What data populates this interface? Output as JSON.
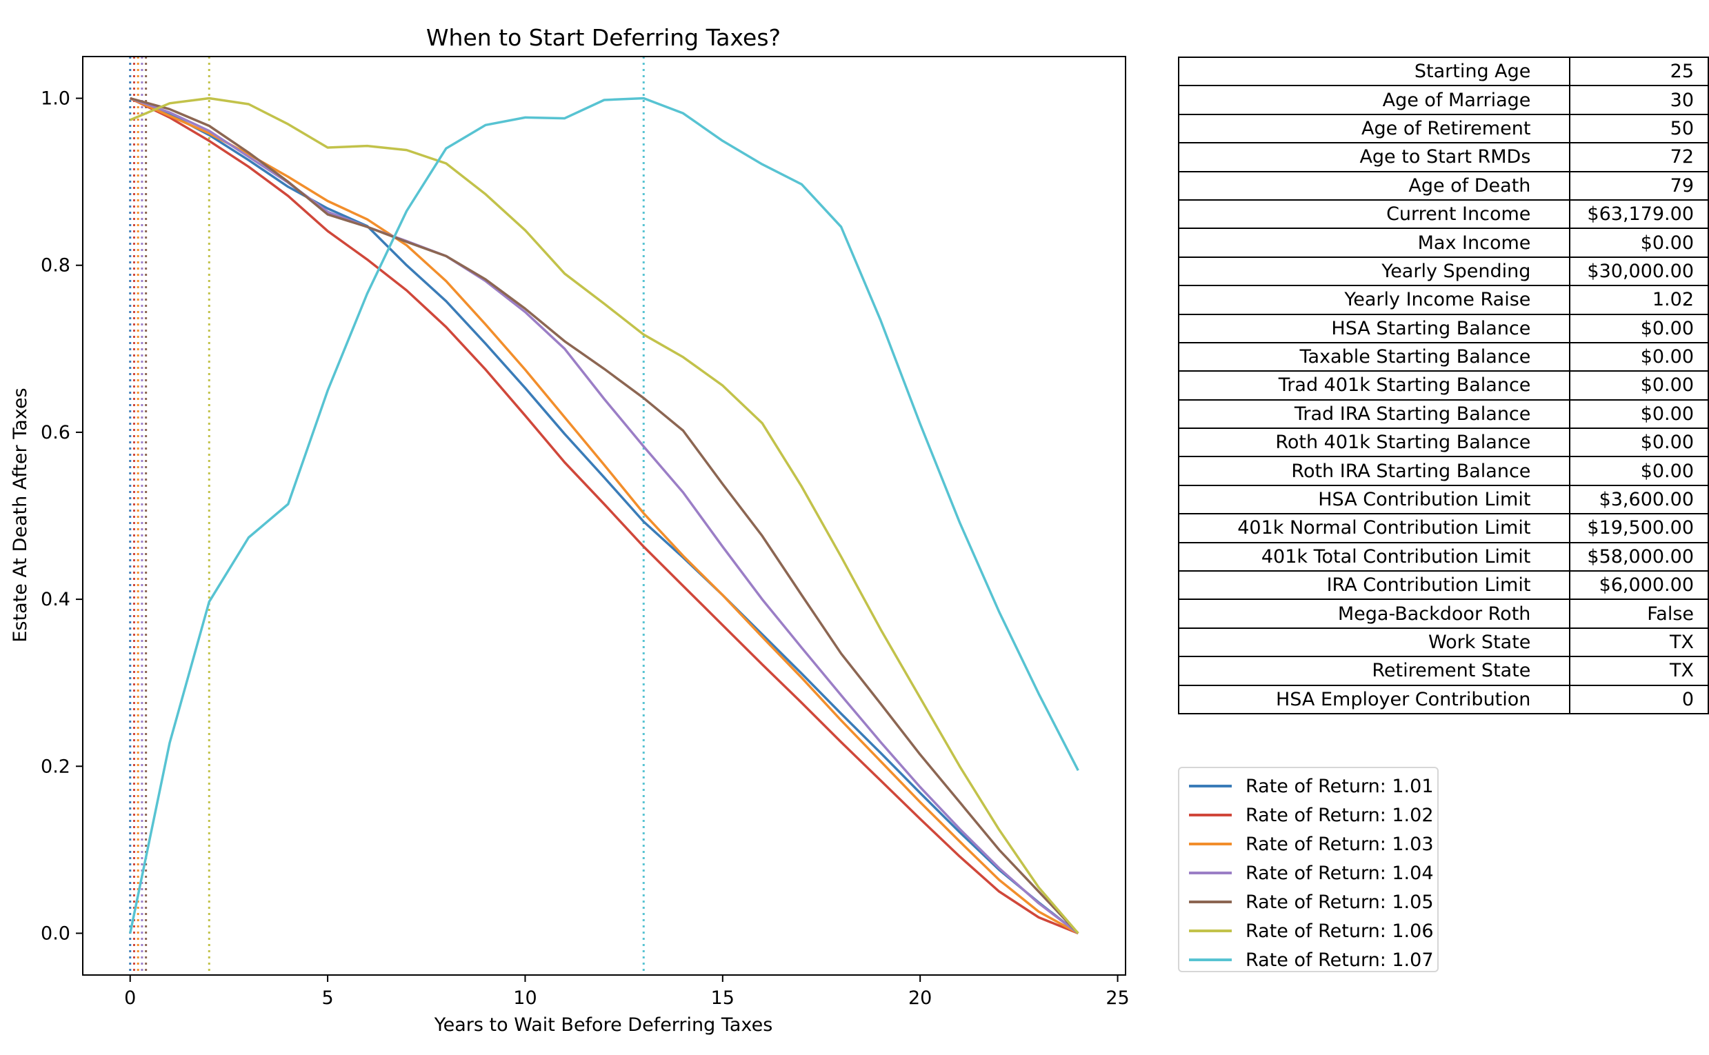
{
  "chart_data": {
    "type": "line",
    "title": "When to Start Deferring Taxes?",
    "xlabel": "Years to Wait Before Deferring Taxes",
    "ylabel": "Estate At Death After Taxes",
    "xlim": [
      -1.2,
      25.2
    ],
    "ylim": [
      -0.05,
      1.05
    ],
    "xticks": [
      0,
      5,
      10,
      15,
      20,
      25
    ],
    "yticks": [
      0.0,
      0.2,
      0.4,
      0.6,
      0.8,
      1.0
    ],
    "xtick_labels": [
      "0",
      "5",
      "10",
      "15",
      "20",
      "25"
    ],
    "ytick_labels": [
      "0.0",
      "0.2",
      "0.4",
      "0.6",
      "0.8",
      "1.0"
    ],
    "grid": false,
    "legend_position": "right-below-table",
    "x": [
      0,
      1,
      2,
      3,
      4,
      5,
      6,
      7,
      8,
      9,
      10,
      11,
      12,
      13,
      14,
      15,
      16,
      17,
      18,
      19,
      20,
      21,
      22,
      23,
      24
    ],
    "series": [
      {
        "name": "Rate of Return: 1.01",
        "color": "#3a7cb8",
        "values": [
          1.0,
          0.981,
          0.956,
          0.926,
          0.894,
          0.868,
          0.847,
          0.8,
          0.757,
          0.706,
          0.653,
          0.598,
          0.546,
          0.493,
          0.45,
          0.405,
          0.358,
          0.311,
          0.263,
          0.216,
          0.168,
          0.121,
          0.076,
          0.037,
          0.0
        ]
      },
      {
        "name": "Rate of Return: 1.02",
        "color": "#d0473a",
        "values": [
          1.0,
          0.977,
          0.949,
          0.918,
          0.883,
          0.841,
          0.807,
          0.77,
          0.726,
          0.675,
          0.62,
          0.564,
          0.514,
          0.463,
          0.416,
          0.369,
          0.322,
          0.276,
          0.229,
          0.183,
          0.137,
          0.092,
          0.05,
          0.019,
          0.0
        ]
      },
      {
        "name": "Rate of Return: 1.03",
        "color": "#f28e2b",
        "values": [
          1.0,
          0.979,
          0.958,
          0.933,
          0.906,
          0.877,
          0.855,
          0.824,
          0.781,
          0.729,
          0.675,
          0.618,
          0.561,
          0.503,
          0.452,
          0.405,
          0.355,
          0.306,
          0.255,
          0.206,
          0.157,
          0.11,
          0.064,
          0.026,
          0.0
        ]
      },
      {
        "name": "Rate of Return: 1.04",
        "color": "#9b7ec6",
        "values": [
          1.0,
          0.983,
          0.961,
          0.93,
          0.899,
          0.864,
          0.846,
          0.829,
          0.811,
          0.781,
          0.744,
          0.7,
          0.64,
          0.583,
          0.528,
          0.463,
          0.4,
          0.342,
          0.285,
          0.229,
          0.175,
          0.125,
          0.078,
          0.036,
          0.0
        ]
      },
      {
        "name": "Rate of Return: 1.05",
        "color": "#8c6652",
        "values": [
          1.0,
          0.987,
          0.967,
          0.935,
          0.9,
          0.861,
          0.846,
          0.828,
          0.811,
          0.783,
          0.748,
          0.709,
          0.676,
          0.641,
          0.602,
          0.538,
          0.476,
          0.405,
          0.335,
          0.275,
          0.214,
          0.157,
          0.1,
          0.05,
          0.0
        ]
      },
      {
        "name": "Rate of Return: 1.06",
        "color": "#c2c24a",
        "values": [
          0.974,
          0.994,
          1.0,
          0.993,
          0.969,
          0.941,
          0.943,
          0.938,
          0.922,
          0.885,
          0.842,
          0.79,
          0.754,
          0.717,
          0.69,
          0.656,
          0.611,
          0.535,
          0.451,
          0.364,
          0.282,
          0.2,
          0.124,
          0.055,
          0.0
        ]
      },
      {
        "name": "Rate of Return: 1.07",
        "color": "#57c3d2",
        "values": [
          0.0,
          0.228,
          0.397,
          0.474,
          0.514,
          0.65,
          0.766,
          0.865,
          0.94,
          0.968,
          0.977,
          0.976,
          0.998,
          1.0,
          0.982,
          0.949,
          0.921,
          0.897,
          0.846,
          0.734,
          0.61,
          0.492,
          0.385,
          0.287,
          0.195
        ]
      }
    ],
    "vlines": [
      {
        "x": 0.0,
        "color": "#3a7cb8",
        "style": "dotted"
      },
      {
        "x": 0.1,
        "color": "#d0473a",
        "style": "dotted"
      },
      {
        "x": 0.2,
        "color": "#f28e2b",
        "style": "dotted"
      },
      {
        "x": 0.3,
        "color": "#9b7ec6",
        "style": "dotted"
      },
      {
        "x": 0.4,
        "color": "#8c6652",
        "style": "dotted"
      },
      {
        "x": 2,
        "color": "#c2c24a",
        "style": "dotted"
      },
      {
        "x": 13,
        "color": "#57c3d2",
        "style": "dotted"
      }
    ]
  },
  "params_table": [
    {
      "label": "Starting Age",
      "value": "25"
    },
    {
      "label": "Age of Marriage",
      "value": "30"
    },
    {
      "label": "Age of Retirement",
      "value": "50"
    },
    {
      "label": "Age to Start RMDs",
      "value": "72"
    },
    {
      "label": "Age of Death",
      "value": "79"
    },
    {
      "label": "Current Income",
      "value": "$63,179.00"
    },
    {
      "label": "Max Income",
      "value": "$0.00"
    },
    {
      "label": "Yearly Spending",
      "value": "$30,000.00"
    },
    {
      "label": "Yearly Income Raise",
      "value": "1.02"
    },
    {
      "label": "HSA Starting Balance",
      "value": "$0.00"
    },
    {
      "label": "Taxable Starting Balance",
      "value": "$0.00"
    },
    {
      "label": "Trad 401k Starting Balance",
      "value": "$0.00"
    },
    {
      "label": "Trad IRA Starting Balance",
      "value": "$0.00"
    },
    {
      "label": "Roth 401k Starting Balance",
      "value": "$0.00"
    },
    {
      "label": "Roth IRA Starting Balance",
      "value": "$0.00"
    },
    {
      "label": "HSA Contribution Limit",
      "value": "$3,600.00"
    },
    {
      "label": "401k Normal Contribution Limit",
      "value": "$19,500.00"
    },
    {
      "label": "401k Total Contribution Limit",
      "value": "$58,000.00"
    },
    {
      "label": "IRA Contribution Limit",
      "value": "$6,000.00"
    },
    {
      "label": "Mega-Backdoor Roth",
      "value": "False"
    },
    {
      "label": "Work State",
      "value": "TX"
    },
    {
      "label": "Retirement State",
      "value": "TX"
    },
    {
      "label": "HSA Employer Contribution",
      "value": "0"
    }
  ]
}
